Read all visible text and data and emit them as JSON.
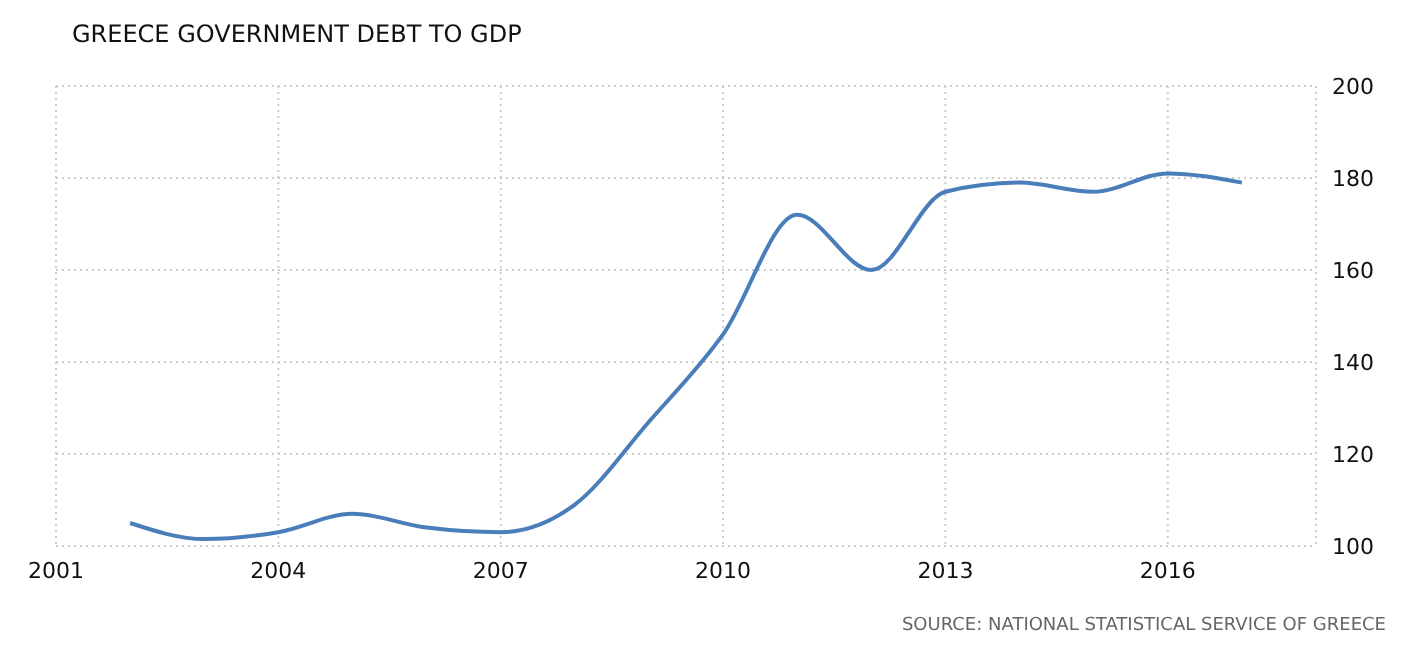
{
  "chart_data": {
    "type": "line",
    "title": "GREECE GOVERNMENT DEBT TO GDP",
    "x": [
      2002,
      2003,
      2004,
      2005,
      2006,
      2007,
      2008,
      2009,
      2010,
      2011,
      2012,
      2013,
      2014,
      2015,
      2016,
      2017
    ],
    "series": [
      {
        "color": "#4a7ebb",
        "values": [
          105,
          101.5,
          103,
          107,
          104,
          103,
          109,
          127,
          146,
          172,
          160,
          177,
          179,
          177,
          181,
          179
        ]
      }
    ],
    "xlim": [
      2001,
      2018
    ],
    "xticks": [
      2001,
      2004,
      2007,
      2010,
      2013,
      2016
    ],
    "ylim": [
      100,
      200
    ],
    "yticks": [
      100,
      120,
      140,
      160,
      180,
      200
    ],
    "grid": true,
    "legend": false,
    "marker": "none",
    "line_style": "solid",
    "annotations": [
      "SOURCE: NATIONAL STATISTICAL SERVICE OF GREECE"
    ]
  }
}
